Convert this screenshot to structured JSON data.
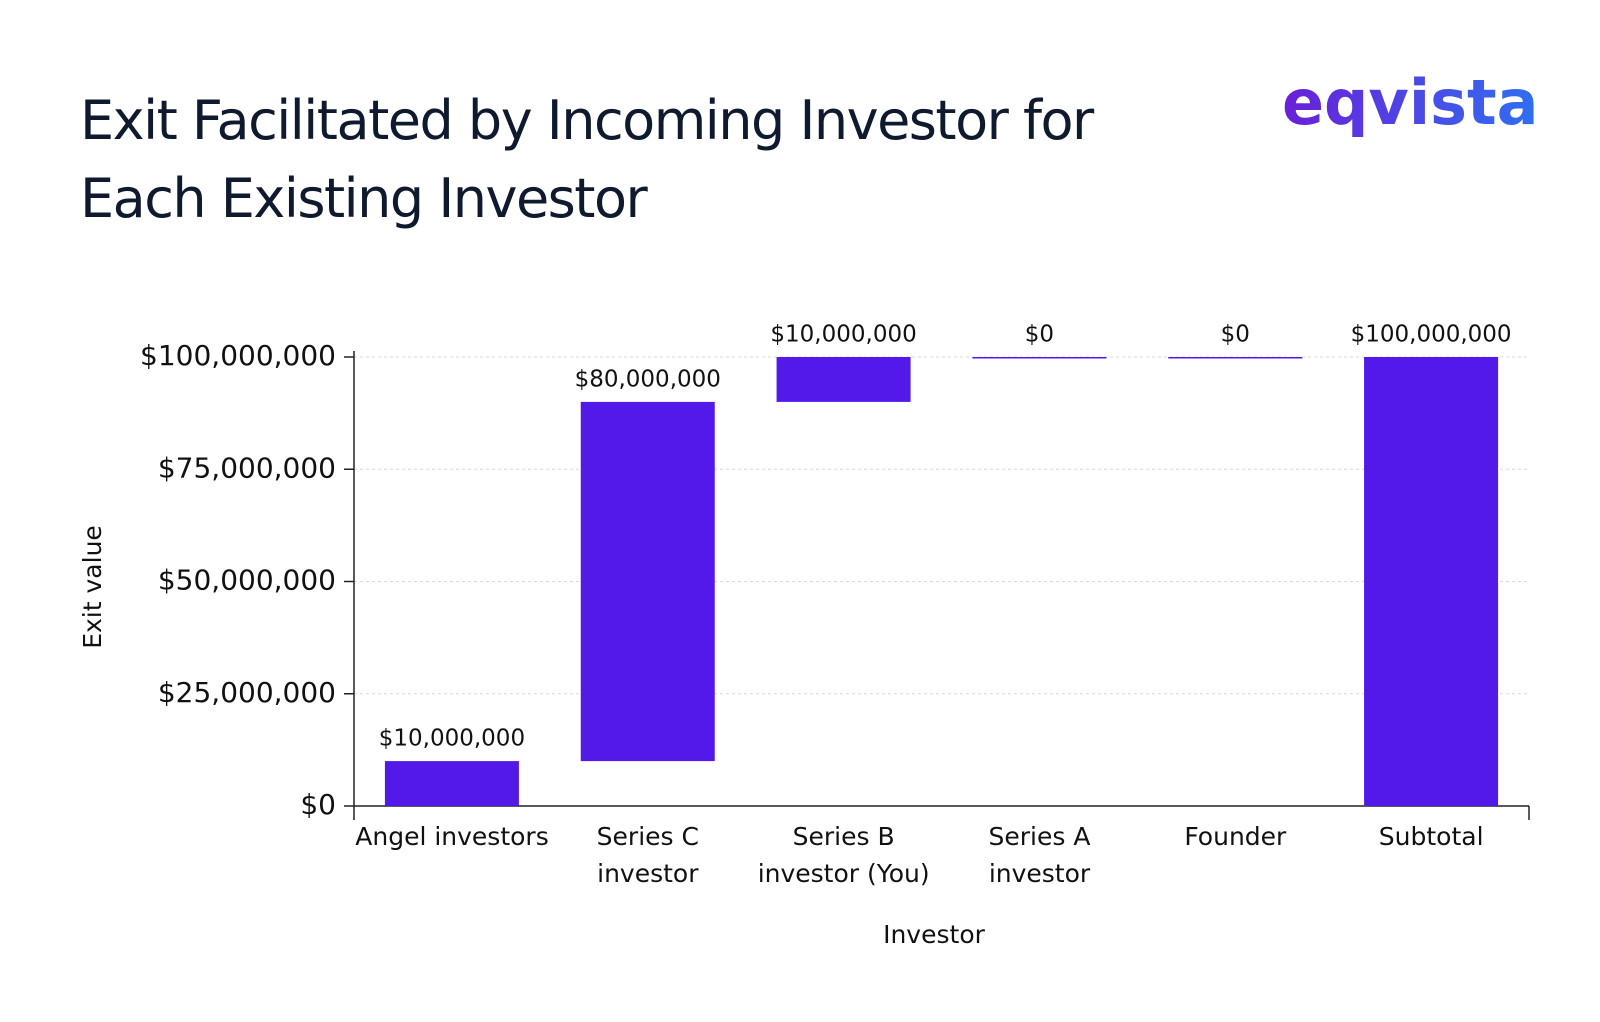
{
  "chart_data": {
    "type": "waterfall",
    "brand": "eqvista",
    "title": "Exit Facilitated by Incoming Investor for Each Existing Investor",
    "x_label": "Investor",
    "y_label": "Exit value",
    "categories": [
      "Angel investors",
      "Series C investor",
      "Series B investor (You)",
      "Series A investor",
      "Founder",
      "Subtotal"
    ],
    "values": [
      10000000,
      80000000,
      10000000,
      0,
      0,
      100000000
    ],
    "value_labels": [
      "$10,000,000",
      "$80,000,000",
      "$10,000,000",
      "$0",
      "$0",
      "$100,000,000"
    ],
    "is_total": [
      false,
      false,
      false,
      false,
      false,
      true
    ],
    "color": "#5219e8",
    "ylim": [
      0,
      100000000
    ],
    "yticks": [
      {
        "value": 0,
        "label": "$0"
      },
      {
        "value": 25000000,
        "label": "$25,000,000"
      },
      {
        "value": 50000000,
        "label": "$50,000,000"
      },
      {
        "value": 75000000,
        "label": "$75,000,000"
      },
      {
        "value": 100000000,
        "label": "$100,000,000"
      }
    ],
    "grid": true
  }
}
